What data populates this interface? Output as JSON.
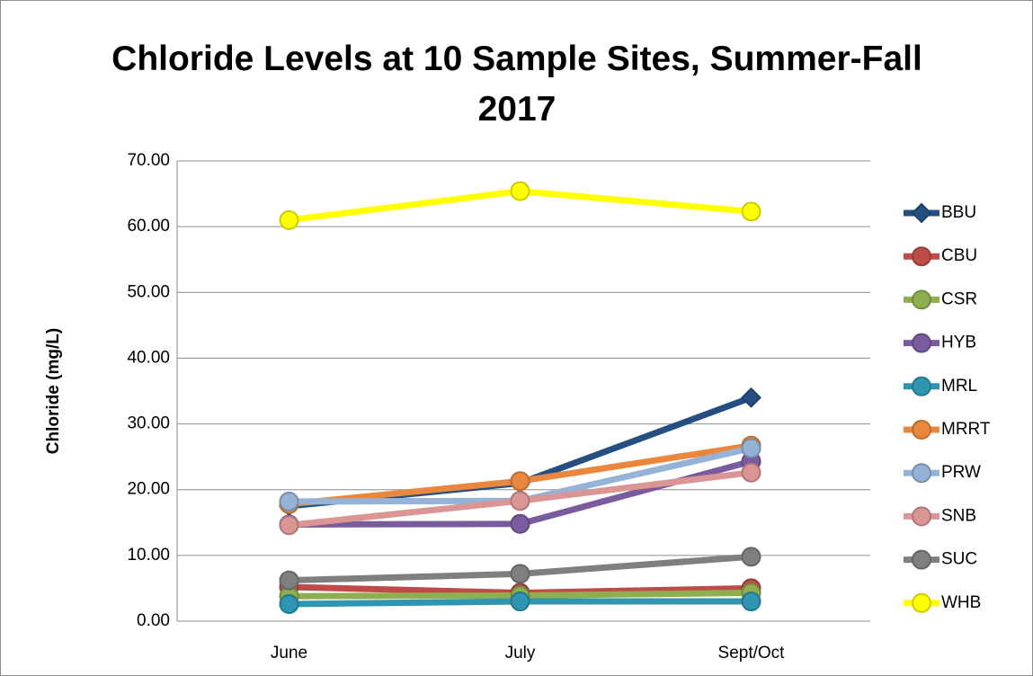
{
  "chart_data": {
    "type": "line",
    "title": "Chloride Levels at 10 Sample Sites, Summer-Fall 2017",
    "y_label": "Chloride (mg/L)",
    "categories": [
      "June",
      "July",
      "Sept/Oct"
    ],
    "series": [
      {
        "name": "BBU",
        "color": "#254f80",
        "marker": "diamond",
        "values": [
          17.5,
          21.0,
          34.0
        ]
      },
      {
        "name": "CBU",
        "color": "#be4b48",
        "marker": "circle",
        "values": [
          5.2,
          4.3,
          5.0
        ]
      },
      {
        "name": "CSR",
        "color": "#8fae4f",
        "marker": "circle",
        "values": [
          3.8,
          3.9,
          4.3
        ]
      },
      {
        "name": "HYB",
        "color": "#7a5b9e",
        "marker": "circle",
        "values": [
          14.7,
          14.8,
          24.3
        ]
      },
      {
        "name": "MRL",
        "color": "#2f95b0",
        "marker": "circle",
        "values": [
          2.6,
          3.0,
          3.0
        ]
      },
      {
        "name": "MRRT",
        "color": "#e8873d",
        "marker": "circle",
        "values": [
          17.8,
          21.3,
          26.7
        ]
      },
      {
        "name": "PRW",
        "color": "#95b3d7",
        "marker": "circle",
        "values": [
          18.2,
          18.3,
          26.3
        ]
      },
      {
        "name": "SNB",
        "color": "#d99694",
        "marker": "circle",
        "values": [
          14.6,
          18.3,
          22.6
        ]
      },
      {
        "name": "SUC",
        "color": "#7f7f7f",
        "marker": "circle",
        "values": [
          6.2,
          7.2,
          9.8
        ]
      },
      {
        "name": "WHB",
        "color": "#ffff00",
        "marker": "circle",
        "values": [
          61.0,
          65.4,
          62.3
        ]
      }
    ],
    "ylim": [
      0,
      70
    ],
    "yticks": [
      {
        "value": 0,
        "label": "0.00"
      },
      {
        "value": 10,
        "label": "10.00"
      },
      {
        "value": 20,
        "label": "20.00"
      },
      {
        "value": 30,
        "label": "30.00"
      },
      {
        "value": 40,
        "label": "40.00"
      },
      {
        "value": 50,
        "label": "50.00"
      },
      {
        "value": 60,
        "label": "60.00"
      },
      {
        "value": 70,
        "label": "70.00"
      }
    ],
    "grid": true,
    "legend": "right"
  }
}
